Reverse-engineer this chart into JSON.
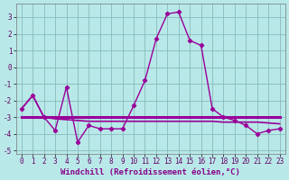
{
  "xlabel": "Windchill (Refroidissement éolien,°C)",
  "background_color": "#b8e8e8",
  "grid_color": "#88bbbb",
  "line_color": "#990099",
  "xlim": [
    -0.5,
    23.5
  ],
  "ylim": [
    -5.2,
    3.8
  ],
  "yticks": [
    -5,
    -4,
    -3,
    -2,
    -1,
    0,
    1,
    2,
    3
  ],
  "xticks": [
    0,
    1,
    2,
    3,
    4,
    5,
    6,
    7,
    8,
    9,
    10,
    11,
    12,
    13,
    14,
    15,
    16,
    17,
    18,
    19,
    20,
    21,
    22,
    23
  ],
  "y_main": [
    -2.5,
    -1.7,
    -3.0,
    -3.8,
    -1.2,
    -4.5,
    -3.5,
    -3.7,
    -3.7,
    -3.7,
    -2.3,
    -0.8,
    1.7,
    3.2,
    3.3,
    1.6,
    1.3,
    -2.5,
    -3.0,
    -3.2,
    -3.5,
    -4.0,
    -3.8,
    -3.7
  ],
  "y_smooth": [
    -2.5,
    -1.7,
    -3.0,
    -3.1,
    -3.15,
    -3.2,
    -3.25,
    -3.25,
    -3.25,
    -3.25,
    -3.25,
    -3.25,
    -3.25,
    -3.25,
    -3.25,
    -3.25,
    -3.25,
    -3.25,
    -3.3,
    -3.3,
    -3.3,
    -3.3,
    -3.35,
    -3.4
  ],
  "y_flat": [
    -3.0,
    -3.0,
    -3.0,
    -3.0,
    -3.0,
    -3.0,
    -3.0,
    -3.0,
    -3.0,
    -3.0,
    -3.0,
    -3.0,
    -3.0,
    -3.0,
    -3.0,
    -3.0,
    -3.0,
    -3.0,
    -3.0,
    -3.0,
    -3.0,
    -3.0,
    -3.0,
    -3.0
  ],
  "xlabel_color": "#880088",
  "xlabel_fontsize": 6.5,
  "tick_fontsize": 5.5,
  "tick_color": "#660066"
}
